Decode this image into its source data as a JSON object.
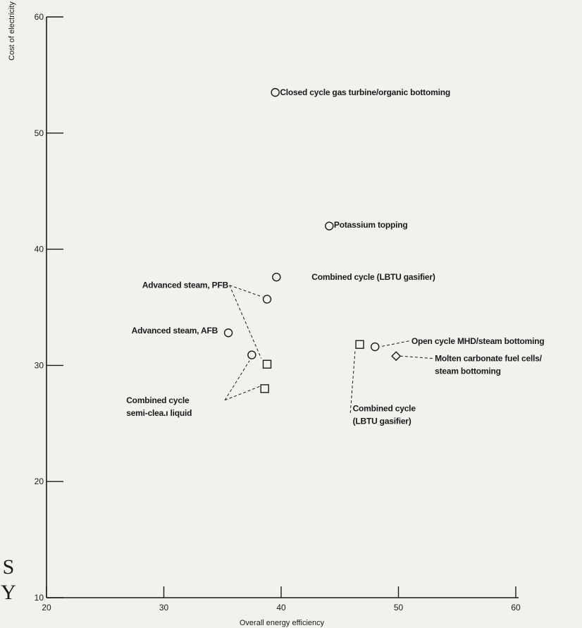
{
  "chart_data": {
    "type": "scatter",
    "title": "",
    "xlabel": "Overall energy efficiency",
    "ylabel": "Cost of electricity",
    "xlim": [
      20,
      60
    ],
    "ylim": [
      10,
      60
    ],
    "xticks": [
      20,
      30,
      40,
      50,
      60
    ],
    "yticks": [
      10,
      20,
      30,
      40,
      50,
      60
    ],
    "grid": false,
    "legend": "none",
    "series": [
      {
        "marker": "circle",
        "points": [
          {
            "x": 39.5,
            "y": 53.5
          },
          {
            "x": 44.1,
            "y": 42.0
          },
          {
            "x": 39.6,
            "y": 37.6
          },
          {
            "x": 38.8,
            "y": 35.7
          },
          {
            "x": 35.5,
            "y": 32.8
          },
          {
            "x": 37.5,
            "y": 30.9
          },
          {
            "x": 48.0,
            "y": 31.6
          }
        ]
      },
      {
        "marker": "square",
        "points": [
          {
            "x": 38.8,
            "y": 30.1
          },
          {
            "x": 38.6,
            "y": 28.0
          },
          {
            "x": 46.7,
            "y": 31.8
          }
        ]
      },
      {
        "marker": "diamond",
        "points": [
          {
            "x": 49.8,
            "y": 30.8
          }
        ]
      }
    ],
    "annotations": [
      {
        "lines": [
          "Closed cycle gas turbine/organic bottoming"
        ],
        "x": 39.9,
        "y": 53.5,
        "anchor": "start"
      },
      {
        "lines": [
          "Potassium topping"
        ],
        "x": 44.5,
        "y": 42.1,
        "anchor": "start"
      },
      {
        "lines": [
          "Combined cycle (LBTU gasifier)"
        ],
        "x": 42.6,
        "y": 37.6,
        "anchor": "start"
      },
      {
        "lines": [
          "Advanced steam, PFB"
        ],
        "x": 35.5,
        "y": 36.9,
        "anchor": "end"
      },
      {
        "lines": [
          "Advanced steam, AFB"
        ],
        "x": 34.6,
        "y": 33.0,
        "anchor": "end"
      },
      {
        "lines": [
          "Open cycle MHD/steam bottoming"
        ],
        "x": 51.1,
        "y": 32.1,
        "anchor": "start"
      },
      {
        "lines": [
          "Molten carbonate fuel cells/",
          "steam bottoming"
        ],
        "x": 53.1,
        "y": 30.6,
        "anchor": "start"
      },
      {
        "lines": [
          "Combined cycle",
          "semi-clea.ı liquid"
        ],
        "x": 26.8,
        "y": 27.0,
        "anchor": "start"
      },
      {
        "lines": [
          "Combined cycle",
          "(LBTU gasifier)"
        ],
        "x": 46.1,
        "y": 26.3,
        "anchor": "start"
      }
    ],
    "margin_glyphs": [
      "S",
      "Y"
    ]
  }
}
